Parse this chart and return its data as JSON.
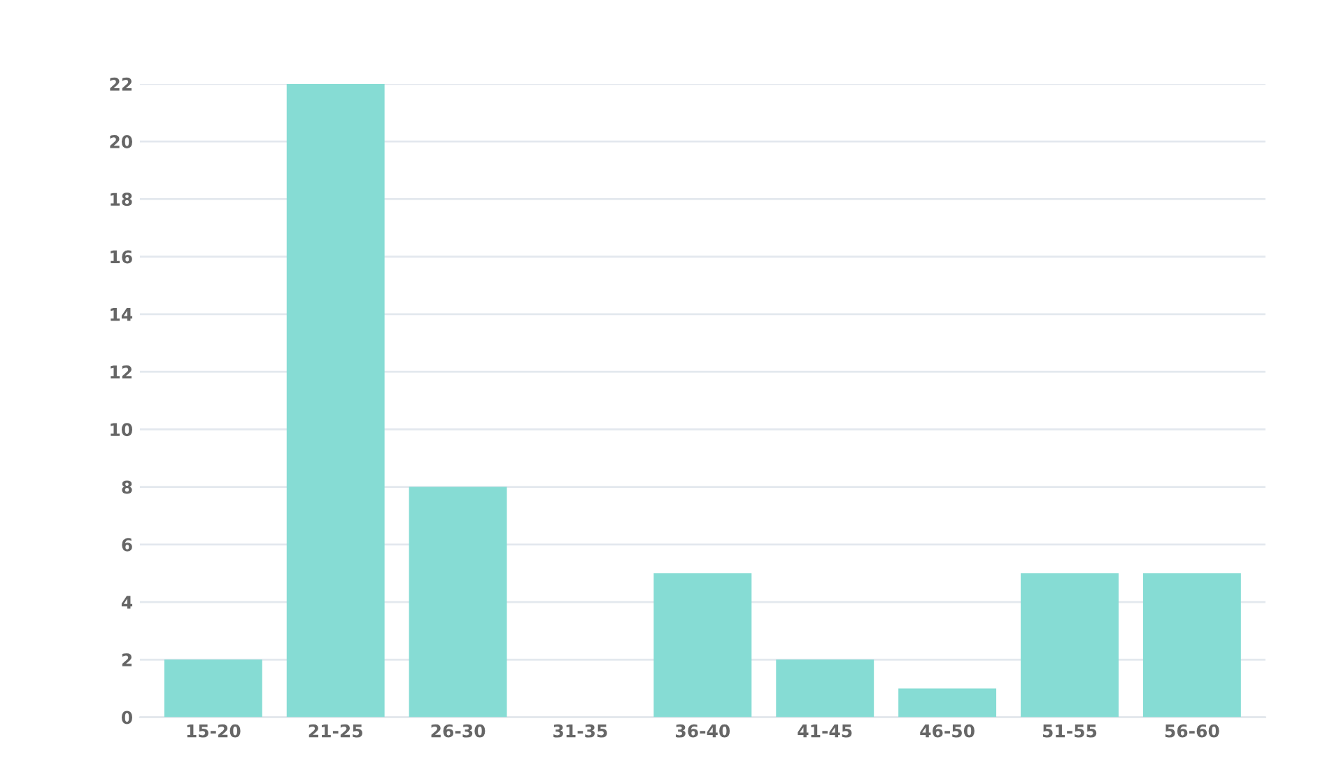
{
  "chart_data": {
    "type": "bar",
    "categories": [
      "15-20",
      "21-25",
      "26-30",
      "31-35",
      "36-40",
      "41-45",
      "46-50",
      "51-55",
      "56-60"
    ],
    "values": [
      2,
      22,
      8,
      0,
      5,
      2,
      1,
      5,
      5
    ],
    "color": "#86dcd4",
    "ylim": [
      0,
      22
    ],
    "yticks": [
      0,
      2,
      4,
      6,
      8,
      10,
      12,
      14,
      16,
      18,
      20,
      22
    ],
    "grid": "y",
    "legend": false
  }
}
